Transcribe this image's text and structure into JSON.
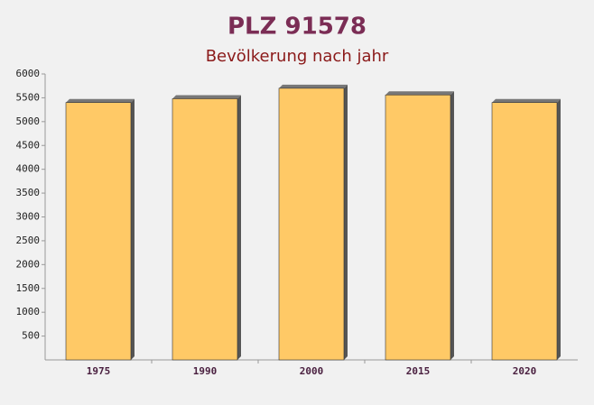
{
  "chart_data": {
    "type": "bar",
    "title": "PLZ 91578",
    "subtitle": "Bevölkerung nach jahr",
    "categories": [
      "1975",
      "1990",
      "2000",
      "2015",
      "2020"
    ],
    "values": [
      5400,
      5480,
      5700,
      5560,
      5400
    ],
    "color": "#ffc966",
    "ylim": [
      0,
      6000
    ],
    "yticks": [
      500,
      1000,
      1500,
      2000,
      2500,
      3000,
      3500,
      4000,
      4500,
      5000,
      5500,
      6000
    ],
    "grid": false
  }
}
